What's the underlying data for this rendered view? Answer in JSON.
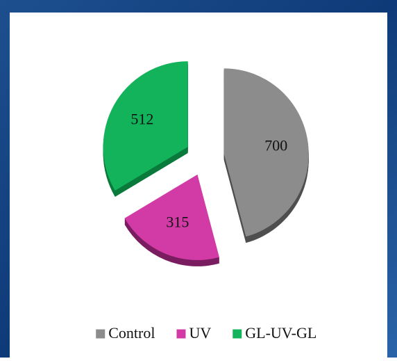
{
  "chart_data": {
    "type": "pie",
    "categories": [
      "Control",
      "UV",
      "GL-UV-GL"
    ],
    "values": [
      700,
      315,
      512
    ],
    "colors": [
      "#8c8c8c",
      "#d23ba6",
      "#13b35b"
    ],
    "shades": [
      "#4f4f4f",
      "#7a1d60",
      "#0b7a3c"
    ],
    "legend": "bottom"
  }
}
